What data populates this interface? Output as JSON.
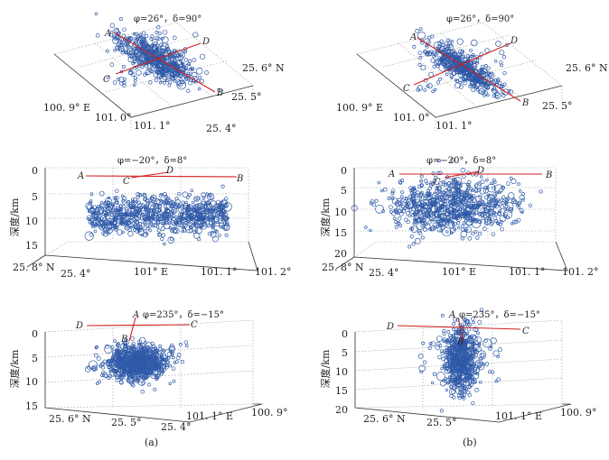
{
  "figure": {
    "caption_a": "(a)",
    "caption_b": "(b)"
  },
  "colors": {
    "point": "#2f5aa8",
    "line": "#d42020",
    "grid": "#9a9a9a",
    "axis": "#333333"
  },
  "chart_data": [
    {
      "id": "a-top",
      "type": "scatter",
      "view_label": "φ=26°，δ=90°",
      "x_ticks": [
        "100. 9° E",
        "101. 0°",
        "101. 1°"
      ],
      "y_ticks": [
        "25. 4°",
        "25. 5°",
        "25. 6° N"
      ],
      "z_label": "",
      "profile_lines": [
        {
          "from": "A",
          "to": "B"
        },
        {
          "from": "C",
          "to": "D"
        }
      ],
      "cluster": {
        "center_lon": 101.02,
        "center_lat": 25.55,
        "depth_km": [
          6,
          10
        ],
        "count": 600
      }
    },
    {
      "id": "b-top",
      "type": "scatter",
      "view_label": "φ=26°，δ=90°",
      "x_ticks": [
        "100. 9° E",
        "101. 0°",
        "101. 1°"
      ],
      "y_ticks": [
        "25. 5°",
        "25. 6° N"
      ],
      "z_label": "",
      "profile_lines": [
        {
          "from": "A",
          "to": "B"
        },
        {
          "from": "C",
          "to": "D"
        }
      ],
      "cluster": {
        "center_lon": 101.03,
        "center_lat": 25.55,
        "depth_km": [
          3,
          14
        ],
        "count": 550
      }
    },
    {
      "id": "a-mid",
      "type": "scatter",
      "view_label": "φ=−20°，δ=8°",
      "z_label": "深度/km",
      "z_ticks": [
        "0",
        "5",
        "10",
        "15"
      ],
      "z_range": [
        0,
        15
      ],
      "x_ticks": [
        "101° E",
        "101. 1°",
        "101. 2°"
      ],
      "y_ticks": [
        "25. 8° N",
        "25. 4°"
      ],
      "line_labels": [
        "A",
        "D",
        "C",
        "B"
      ],
      "cluster": {
        "depth_km": [
          6,
          10
        ],
        "layered": true,
        "count": 800
      }
    },
    {
      "id": "b-mid",
      "type": "scatter",
      "view_label": "φ=−20°，δ=8°",
      "z_label": "深度/km",
      "z_ticks": [
        "0",
        "5",
        "10",
        "15",
        "20"
      ],
      "z_range": [
        0,
        20
      ],
      "x_ticks": [
        "101° E",
        "101. 1°",
        "101. 2°"
      ],
      "y_ticks": [
        "25. 8° N",
        "25. 4°"
      ],
      "line_labels": [
        "A",
        "D",
        "C",
        "B"
      ],
      "cluster": {
        "depth_km": [
          3,
          14
        ],
        "layered": false,
        "count": 700
      }
    },
    {
      "id": "a-bot",
      "type": "scatter",
      "view_label": "φ=235°，δ=−15°",
      "z_label": "深度/km",
      "z_ticks": [
        "0",
        "5",
        "10",
        "15"
      ],
      "z_range": [
        0,
        15
      ],
      "x_ticks": [
        "25. 6° N",
        "25. 5°",
        "25. 4°"
      ],
      "y_ticks": [
        "101. 1° E",
        "100. 9°"
      ],
      "line_labels": [
        "D",
        "A",
        "C",
        "B"
      ],
      "cluster": {
        "depth_km": [
          4,
          12
        ],
        "count": 800
      }
    },
    {
      "id": "b-bot",
      "type": "scatter",
      "view_label": "φ=235°，δ=−15°",
      "z_label": "深度/km",
      "z_ticks": [
        "0",
        "5",
        "10",
        "15",
        "20"
      ],
      "z_range": [
        0,
        20
      ],
      "x_ticks": [
        "25. 6° N",
        "25. 5°"
      ],
      "y_ticks": [
        "101. 1° E",
        "100. 9°"
      ],
      "line_labels": [
        "D",
        "A",
        "C",
        "B"
      ],
      "cluster": {
        "depth_km": [
          0,
          14
        ],
        "count": 600
      }
    }
  ]
}
